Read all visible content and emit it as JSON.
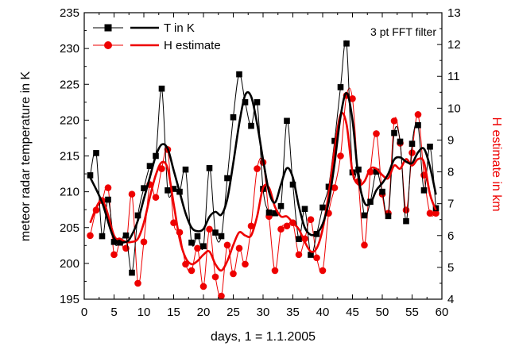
{
  "chart_data": {
    "type": "line",
    "xlabel": "days, 1 = 1.1.2005",
    "ylabel_left": "meteor radar temperature in K",
    "ylabel_right": "H estimate in km",
    "annotation": "3 pt FFT filter",
    "xlim": [
      0,
      60
    ],
    "ylim_left": [
      195,
      235
    ],
    "ylim_right": [
      4,
      13
    ],
    "x_ticks": [
      "0",
      "5",
      "10",
      "15",
      "20",
      "25",
      "30",
      "35",
      "40",
      "45",
      "50",
      "55",
      "60"
    ],
    "y_left_ticks": [
      "195",
      "200",
      "205",
      "210",
      "215",
      "220",
      "225",
      "230",
      "235"
    ],
    "y_right_ticks": [
      "4",
      "5",
      "6",
      "7",
      "8",
      "9",
      "10",
      "11",
      "12",
      "13"
    ],
    "legend": [
      {
        "label": "T in K",
        "color": "#000000",
        "marker": "square"
      },
      {
        "label": "H estimate",
        "color": "#ee0000",
        "marker": "circle"
      }
    ],
    "series": [
      {
        "name": "T in K",
        "axis": "left",
        "color": "#000000",
        "marker": "square",
        "x": [
          1,
          2,
          3,
          4,
          5,
          6,
          7,
          8,
          9,
          10,
          11,
          12,
          13,
          14,
          15,
          16,
          17,
          18,
          19,
          20,
          21,
          22,
          23,
          24,
          25,
          26,
          27,
          28,
          29,
          30,
          31,
          32,
          33,
          34,
          35,
          36,
          37,
          38,
          39,
          40,
          41,
          42,
          43,
          44,
          45,
          46,
          47,
          48,
          49,
          50,
          51,
          52,
          53,
          54,
          55,
          56,
          57,
          58,
          59
        ],
        "values": [
          212.3,
          215.4,
          203.8,
          208.9,
          203,
          202.9,
          203.9,
          198.7,
          206.7,
          210.5,
          213.6,
          215,
          224.4,
          210.2,
          210.4,
          210,
          213.1,
          202.9,
          203.8,
          202.4,
          213.3,
          204.3,
          203.8,
          211.9,
          220.4,
          226.4,
          222.5,
          219.2,
          222.5,
          210.4,
          207.1,
          207,
          208,
          219.9,
          211,
          203.4,
          207.6,
          201.2,
          204.1,
          207.8,
          210.7,
          217.1,
          224.6,
          230.7,
          212.7,
          213.1,
          206.7,
          208.6,
          212.8,
          210,
          206.6,
          218.2,
          217,
          205.9,
          216.7,
          219.3,
          210.2,
          216.3,
          207.7
        ]
      },
      {
        "name": "T in K (3 pt FFT filter)",
        "axis": "left",
        "color": "#000000",
        "x": [
          1,
          3,
          5,
          7,
          8,
          9,
          10,
          11,
          12,
          13,
          14,
          15,
          16,
          17,
          18,
          19,
          20,
          21,
          22,
          23,
          24,
          25,
          26,
          27,
          28,
          29,
          30,
          31,
          32,
          33,
          34,
          35,
          36,
          37,
          38,
          39,
          40,
          41,
          42,
          43,
          44,
          45,
          46,
          47,
          48,
          49,
          50,
          51,
          52,
          53,
          54,
          55,
          56,
          57,
          58,
          59
        ],
        "values": [
          212,
          208.5,
          203.5,
          203,
          204,
          206,
          209,
          212,
          215,
          216.6,
          216,
          213,
          210,
          207,
          205,
          204.5,
          204.8,
          206.5,
          207.2,
          206.8,
          209,
          214,
          219.5,
          223.5,
          223.3,
          219.5,
          214.5,
          210,
          208.5,
          211,
          213.3,
          212,
          208,
          205,
          204,
          204.2,
          205.5,
          208.5,
          214,
          220.5,
          223.8,
          220,
          212,
          208.5,
          208.4,
          210.2,
          211.2,
          212.5,
          214.5,
          214.8,
          214.2,
          214,
          215.5,
          216,
          213.5,
          209.6
        ]
      },
      {
        "name": "H estimate",
        "axis": "right",
        "color": "#ee0000",
        "marker": "circle",
        "x": [
          1,
          2,
          3,
          4,
          5,
          6,
          7,
          8,
          9,
          10,
          11,
          12,
          13,
          14,
          15,
          16,
          17,
          18,
          19,
          20,
          21,
          22,
          23,
          24,
          25,
          26,
          27,
          28,
          29,
          30,
          31,
          32,
          33,
          34,
          35,
          36,
          37,
          38,
          39,
          40,
          41,
          42,
          43,
          44,
          45,
          46,
          47,
          48,
          49,
          50,
          51,
          52,
          53,
          54,
          55,
          56,
          57,
          58,
          59
        ],
        "values": [
          6,
          6.8,
          7.1,
          7.5,
          5.4,
          5.8,
          5.6,
          7.3,
          4.5,
          5.8,
          7.6,
          7.2,
          8.1,
          8.7,
          6.4,
          6.1,
          5.1,
          4.9,
          5.6,
          4.4,
          6.2,
          4.7,
          4.1,
          5.7,
          4.8,
          5.6,
          5.1,
          6.3,
          8.1,
          8.3,
          6.6,
          4.9,
          6.2,
          6.3,
          6.4,
          5.4,
          5.9,
          6.5,
          5.3,
          4.9,
          6.7,
          7.5,
          8.5,
          10.4,
          10.3,
          7.7,
          5.7,
          8,
          9.2,
          7.3,
          6.7,
          9.6,
          8.9,
          6.8,
          8.6,
          9.8,
          7.9,
          6.7,
          6.7
        ]
      },
      {
        "name": "H estimate (3 pt FFT filter)",
        "axis": "right",
        "color": "#ee0000",
        "x": [
          1,
          3,
          5,
          6,
          7,
          8,
          9,
          10,
          11,
          12,
          13,
          14,
          15,
          16,
          17,
          18,
          19,
          20,
          21,
          22,
          23,
          24,
          25,
          26,
          27,
          28,
          29,
          30,
          31,
          32,
          33,
          34,
          35,
          36,
          37,
          38,
          39,
          40,
          41,
          42,
          43,
          44,
          45,
          46,
          47,
          48,
          49,
          50,
          51,
          52,
          53,
          54,
          55,
          56,
          57,
          58,
          59
        ],
        "values": [
          6.4,
          7.1,
          6,
          5.9,
          5.8,
          5.8,
          5.9,
          6.4,
          7.2,
          7.9,
          8.3,
          8.1,
          7,
          5.9,
          5.3,
          5.1,
          5.2,
          5.4,
          5.5,
          5.1,
          4.9,
          5.2,
          5.7,
          6.1,
          6,
          6,
          6.6,
          7.5,
          7.5,
          6.9,
          6.6,
          6.6,
          6.4,
          6.2,
          5.8,
          5.5,
          5.6,
          6.2,
          7.3,
          8.7,
          9.8,
          9.5,
          8,
          7.6,
          7.7,
          8.1,
          8.1,
          7.9,
          7.8,
          8.2,
          8.1,
          8.4,
          8.2,
          8.4,
          8.3,
          7.3,
          6.8
        ]
      }
    ]
  }
}
